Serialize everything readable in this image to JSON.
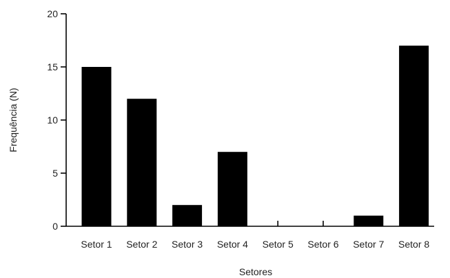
{
  "chart_data": {
    "type": "bar",
    "title": "",
    "xlabel": "Setores",
    "ylabel": "Frequência (N)",
    "categories": [
      "Setor 1",
      "Setor 2",
      "Setor 3",
      "Setor 4",
      "Setor 5",
      "Setor 6",
      "Setor 7",
      "Setor 8"
    ],
    "values": [
      15,
      12,
      2,
      7,
      0,
      0,
      1,
      17
    ],
    "ylim": [
      0,
      20
    ],
    "yticks": [
      "0",
      "5",
      "10",
      "15",
      "20"
    ],
    "grid": false,
    "legend": "none",
    "bar_color": "#000000"
  }
}
